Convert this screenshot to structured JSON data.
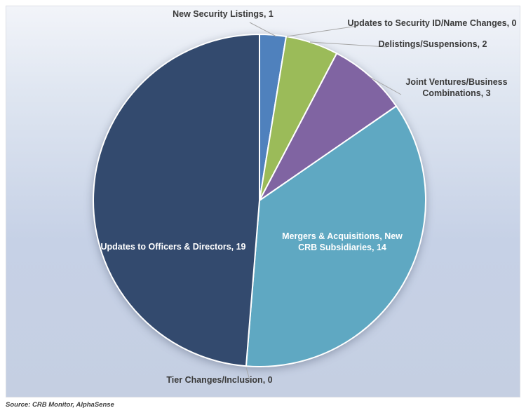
{
  "source_note": "Source: CRB Monitor, AlphaSense",
  "colors": {
    "background_top": "#F2F4F9",
    "background_bottom": "#C5CFE2",
    "plot_border": "#DCDFE6",
    "slice_border": "#FFFFFF",
    "outside_label_text": "#3A3A3A",
    "inside_label_text": "#FFFFFF",
    "leader_line": "#A6A6A6"
  },
  "chart_data": {
    "type": "pie",
    "title": "",
    "legend_position": "none",
    "labels_show_values": true,
    "start_angle_deg": 0,
    "direction": "clockwise",
    "slices": [
      {
        "label": "New Security Listings",
        "value": 1,
        "color": "#4F81BD",
        "label_placement": "outside"
      },
      {
        "label": "Updates to Security ID/Name Changes",
        "value": 0,
        "color": null,
        "label_placement": "outside"
      },
      {
        "label": "Delistings/Suspensions",
        "value": 2,
        "color": "#9BBB59",
        "label_placement": "outside"
      },
      {
        "label": "Joint Ventures/Business Combinations",
        "value": 3,
        "color": "#8064A2",
        "label_placement": "outside"
      },
      {
        "label": "Mergers & Acquisitions, New CRB Subsidiaries",
        "value": 14,
        "color": "#5FA8C2",
        "label_placement": "inside"
      },
      {
        "label": "Tier Changes/Inclusion",
        "value": 0,
        "color": null,
        "label_placement": "outside"
      },
      {
        "label": "Updates to Officers & Directors",
        "value": 19,
        "color": "#334A6E",
        "label_placement": "inside"
      }
    ]
  }
}
